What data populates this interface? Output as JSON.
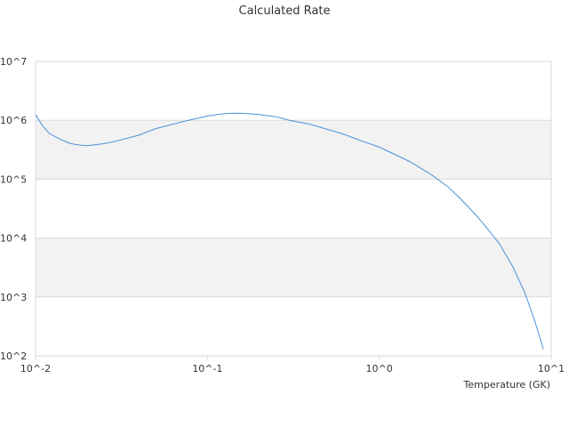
{
  "chart_data": {
    "type": "line",
    "title": "Calculated Rate",
    "xlabel": "Temperature (GK)",
    "ylabel": "",
    "x_scale": "log",
    "y_scale": "log",
    "xlim": [
      0.01,
      10
    ],
    "ylim": [
      100,
      10000000
    ],
    "x_ticks": [
      "10^-2",
      "10^-1",
      "10^0",
      "10^1"
    ],
    "y_ticks": [
      "10^2",
      "10^3",
      "10^4",
      "10^5",
      "10^6",
      "10^7"
    ],
    "alternating_band_color": "#f2f2f2",
    "grid_color": "#d9d9d9",
    "series": [
      {
        "color": "#4a90d9",
        "x": [
          0.01,
          0.011,
          0.012,
          0.014,
          0.016,
          0.018,
          0.02,
          0.025,
          0.03,
          0.04,
          0.05,
          0.06,
          0.07,
          0.08,
          0.09,
          0.1,
          0.12,
          0.14,
          0.16,
          0.2,
          0.25,
          0.3,
          0.4,
          0.5,
          0.6,
          0.7,
          0.8,
          0.9,
          1.0,
          1.5,
          2.0,
          2.5,
          3.0,
          3.5,
          4.0,
          5.0,
          6.0,
          7.0,
          8.0,
          9.0
        ],
        "y": [
          1250000,
          800000,
          600000,
          470000,
          400000,
          380000,
          370000,
          400000,
          450000,
          560000,
          720000,
          830000,
          930000,
          1020000,
          1100000,
          1180000,
          1280000,
          1320000,
          1310000,
          1250000,
          1150000,
          1000000,
          850000,
          700000,
          600000,
          510000,
          440000,
          390000,
          350000,
          200000,
          120000,
          75000,
          45000,
          28000,
          18000,
          8000,
          3200,
          1200,
          400,
          130
        ]
      }
    ]
  }
}
